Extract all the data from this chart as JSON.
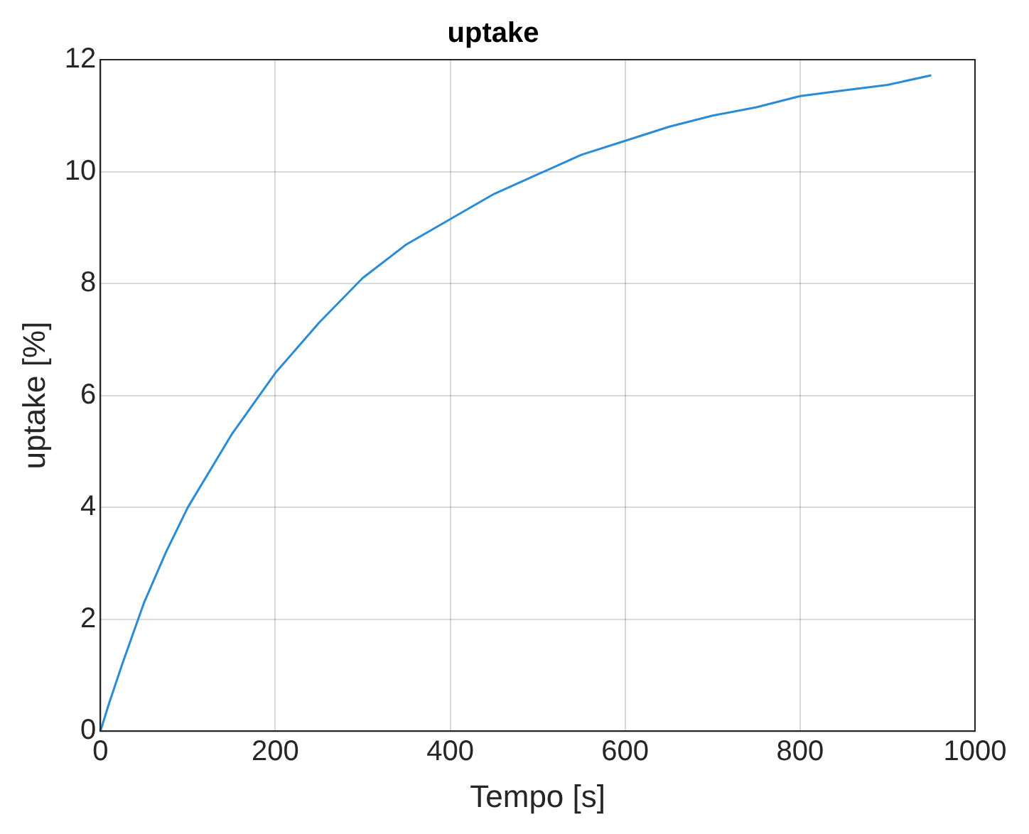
{
  "chart_data": {
    "type": "line",
    "title": "uptake",
    "xlabel": "Tempo [s]",
    "ylabel": "uptake [%]",
    "x": [
      0,
      10,
      25,
      50,
      75,
      100,
      150,
      200,
      250,
      300,
      350,
      400,
      450,
      500,
      550,
      600,
      650,
      700,
      750,
      800,
      850,
      900,
      950
    ],
    "series": [
      {
        "color": "#2b8cd6",
        "values": [
          0,
          0.5,
          1.2,
          2.3,
          3.2,
          4.0,
          5.3,
          6.4,
          7.3,
          8.1,
          8.7,
          9.15,
          9.6,
          9.95,
          10.3,
          10.55,
          10.8,
          11.0,
          11.15,
          11.35,
          11.45,
          11.55,
          11.72
        ]
      }
    ],
    "xlim": [
      0,
      1000
    ],
    "ylim": [
      0,
      12
    ],
    "xticks": [
      0,
      200,
      400,
      600,
      800,
      1000
    ],
    "yticks": [
      0,
      2,
      4,
      6,
      8,
      10,
      12
    ],
    "grid": true,
    "marker": "none",
    "line_style": "solid",
    "legend": false
  }
}
